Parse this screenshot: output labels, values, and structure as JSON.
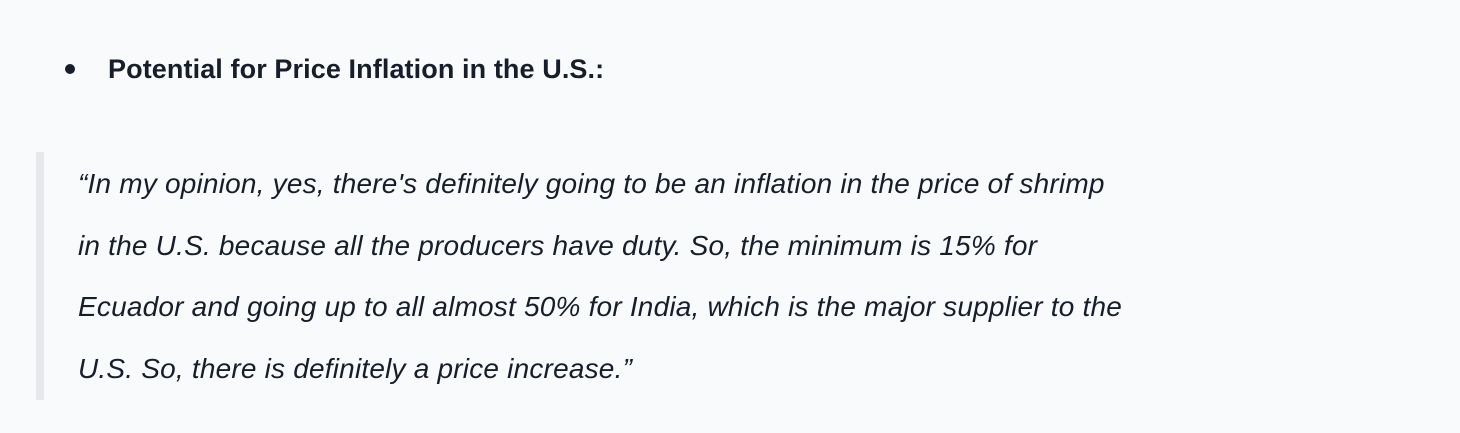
{
  "page": {
    "background_color": "#f9fafb",
    "text_color": "#161d2b",
    "quote_bar_color": "#e7e8ec"
  },
  "document": {
    "heading": "Potential for Price Inflation in the U.S.:",
    "quote_lines": [
      "“In my opinion, yes, there's definitely going to be an inflation in the price of shrimp",
      "in the U.S. because all the producers have duty. So, the minimum is 15% for",
      "Ecuador and going up to all almost 50% for India, which is the major supplier to the",
      "U.S. So, there is definitely a price increase.”"
    ]
  }
}
